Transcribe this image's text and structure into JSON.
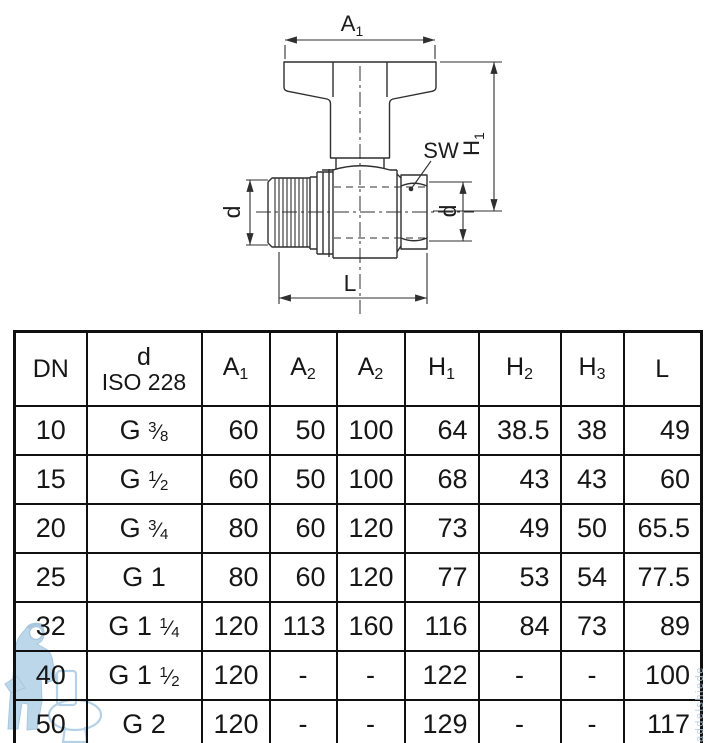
{
  "drawing": {
    "labels": {
      "a1_base": "A",
      "a1_sub": "1",
      "h1_base": "H",
      "h1_sub": "1",
      "sw": "SW",
      "d_left": "d",
      "d_right": "d",
      "l": "L"
    },
    "line_color": "#2f2f2f"
  },
  "table": {
    "headers": [
      {
        "base": "DN",
        "sub": ""
      },
      {
        "base": "d",
        "sub": "",
        "line2": "ISO 228"
      },
      {
        "base": "A",
        "sub": "1"
      },
      {
        "base": "A",
        "sub": "2"
      },
      {
        "base": "A",
        "sub": "2"
      },
      {
        "base": "H",
        "sub": "1"
      },
      {
        "base": "H",
        "sub": "2"
      },
      {
        "base": "H",
        "sub": "3"
      },
      {
        "base": "L",
        "sub": ""
      }
    ],
    "align": [
      "center",
      "center",
      "right",
      "right",
      "right",
      "right",
      "right",
      "center",
      "right"
    ],
    "rows": [
      [
        "10",
        "G 3/8",
        "60",
        "50",
        "100",
        "64",
        "38.5",
        "38",
        "49"
      ],
      [
        "15",
        "G 1/2",
        "60",
        "50",
        "100",
        "68",
        "43",
        "43",
        "60"
      ],
      [
        "20",
        "G 3/4",
        "80",
        "60",
        "120",
        "73",
        "49",
        "50",
        "65.5"
      ],
      [
        "25",
        "G 1",
        "80",
        "60",
        "120",
        "77",
        "53",
        "54",
        "77.5"
      ],
      [
        "32",
        "G 1 1/4",
        "120",
        "113",
        "160",
        "116",
        "84",
        "73",
        "89"
      ],
      [
        "40",
        "G 1 1/2",
        "120",
        "-",
        "-",
        "122",
        "-",
        "-",
        "100"
      ],
      [
        "50",
        "G 2",
        "120",
        "-",
        "-",
        "129",
        "-",
        "-",
        "117"
      ]
    ]
  },
  "watermark": {
    "vertical_text": "addelshiede",
    "color": "#b6d3e8"
  }
}
